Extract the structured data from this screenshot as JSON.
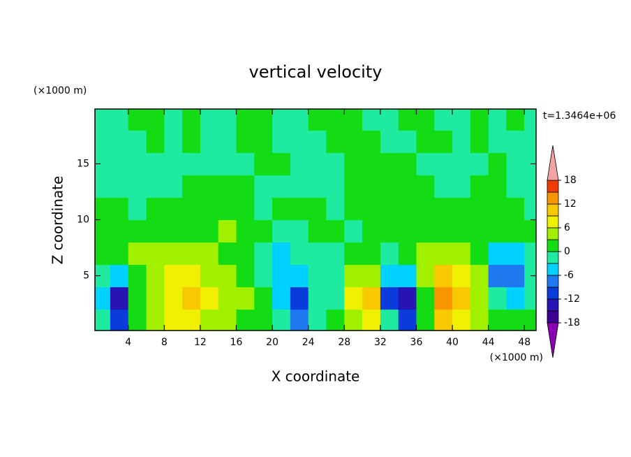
{
  "chart_data": {
    "type": "contour",
    "title": "vertical velocity",
    "x_label": "X coordinate",
    "y_label": "Z coordinate",
    "x_units": "(×1000 m)",
    "y_units": "(×1000 m)",
    "time_label": "t=1.3464e+06",
    "xlim": [
      0.3,
      49.3
    ],
    "ylim": [
      0.1,
      19.9
    ],
    "xticks": [
      4,
      8,
      12,
      16,
      20,
      24,
      28,
      32,
      36,
      40,
      44,
      48
    ],
    "yticks": [
      5,
      10,
      15
    ],
    "x": [
      1,
      3,
      5,
      7,
      9,
      11,
      13,
      15,
      17,
      19,
      21,
      23,
      25,
      27,
      29,
      31,
      33,
      35,
      37,
      39,
      41,
      43,
      45,
      47,
      49
    ],
    "y": [
      1,
      3,
      5,
      7,
      9,
      11,
      13,
      15,
      17,
      19
    ],
    "z": [
      [
        -1,
        -10,
        1,
        4,
        7,
        7,
        4,
        4,
        1,
        1,
        -1,
        -7,
        -1,
        1,
        4,
        7,
        -1,
        -10,
        1,
        10,
        7,
        4,
        1,
        1,
        1
      ],
      [
        -4,
        -13,
        1,
        4,
        7,
        10,
        7,
        4,
        4,
        1,
        -4,
        -10,
        -1,
        -1,
        7,
        10,
        -10,
        -13,
        1,
        13,
        10,
        4,
        -1,
        -4,
        -1
      ],
      [
        -1,
        -4,
        1,
        4,
        7,
        7,
        4,
        4,
        1,
        -1,
        -4,
        -4,
        -1,
        -1,
        4,
        4,
        -4,
        -4,
        4,
        10,
        7,
        4,
        -7,
        -7,
        -1
      ],
      [
        1,
        1,
        4,
        4,
        4,
        4,
        4,
        1,
        1,
        -1,
        -4,
        -1,
        -1,
        -1,
        1,
        1,
        -1,
        1,
        4,
        4,
        4,
        1,
        -4,
        -4,
        -1
      ],
      [
        1,
        1,
        1,
        1,
        1,
        1,
        1,
        4,
        2,
        1,
        -1,
        -1,
        1,
        1,
        -1,
        1,
        1,
        1,
        2,
        1,
        1,
        1,
        1,
        1,
        1
      ],
      [
        1,
        1,
        -1,
        1,
        1,
        1,
        1,
        1,
        1,
        -1,
        1,
        1,
        1,
        -1,
        1,
        1,
        1,
        1,
        1,
        1,
        1,
        1,
        1,
        1,
        -1
      ],
      [
        -1,
        -1,
        -1,
        -1,
        -1,
        1,
        1,
        1,
        1,
        -1,
        -1,
        -1,
        -1,
        -1,
        1,
        1,
        1,
        1,
        1,
        -1,
        -1,
        1,
        1,
        -1,
        -1
      ],
      [
        -1,
        -1,
        -1,
        -1,
        -1,
        -1,
        -1,
        -1,
        -1,
        1,
        1,
        -1,
        -1,
        -1,
        1,
        1,
        1,
        1,
        -1,
        -1,
        -1,
        -1,
        1,
        -1,
        -1
      ],
      [
        -1,
        -1,
        -1,
        1,
        -1,
        1,
        -1,
        -1,
        1,
        1,
        -1,
        -1,
        -1,
        1,
        1,
        1,
        -1,
        -1,
        1,
        1,
        -1,
        1,
        -1,
        -1,
        -1
      ],
      [
        -1,
        -1,
        1,
        1,
        -1,
        1,
        -1,
        -1,
        1,
        1,
        -1,
        -1,
        1,
        1,
        1,
        -1,
        -1,
        1,
        1,
        -1,
        -1,
        1,
        -1,
        1,
        -1
      ]
    ],
    "levels": [
      -18,
      -15,
      -12,
      -9,
      -6,
      -3,
      0,
      3,
      6,
      9,
      12,
      15,
      18
    ],
    "colors": [
      "#8c00b4",
      "#3c0096",
      "#2814b4",
      "#0a3cdc",
      "#1e78f0",
      "#00d2ff",
      "#1eeba0",
      "#14dc14",
      "#a0f000",
      "#f0f000",
      "#f8c800",
      "#f89600",
      "#f03c00",
      "#f4a4a4"
    ],
    "colorbar_ticks": [
      18,
      12,
      6,
      0,
      -6,
      -12,
      -18
    ]
  }
}
